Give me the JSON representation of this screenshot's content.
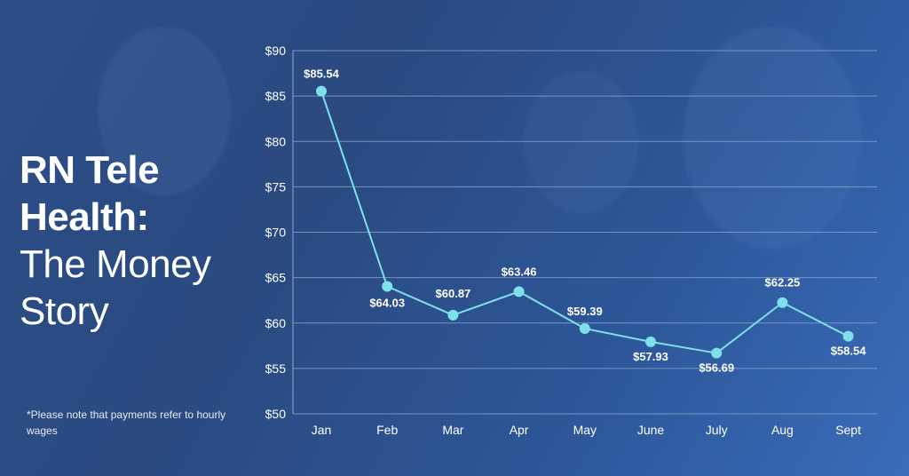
{
  "title": {
    "line1": "RN Tele",
    "line2": "Health:",
    "line3": "The Money",
    "line4": "Story"
  },
  "footnote": "*Please note that payments refer to hourly wages",
  "colors": {
    "line": "#7fe0ea",
    "grid": "#8fa8cf",
    "text": "#ffffff"
  },
  "chart_data": {
    "type": "line",
    "categories": [
      "Jan",
      "Feb",
      "Mar",
      "Apr",
      "May",
      "June",
      "July",
      "Aug",
      "Sept"
    ],
    "values": [
      85.54,
      64.03,
      60.87,
      63.46,
      59.39,
      57.93,
      56.69,
      62.25,
      58.54
    ],
    "data_labels": [
      "$85.54",
      "$64.03",
      "$60.87",
      "$63.46",
      "$59.39",
      "$57.93",
      "$56.69",
      "$62.25",
      "$58.54"
    ],
    "y_ticks": [
      "$50",
      "$55",
      "$60",
      "$65",
      "$70",
      "$75",
      "$80",
      "$85",
      "$90"
    ],
    "ylim": [
      50,
      90
    ],
    "grid": true
  }
}
